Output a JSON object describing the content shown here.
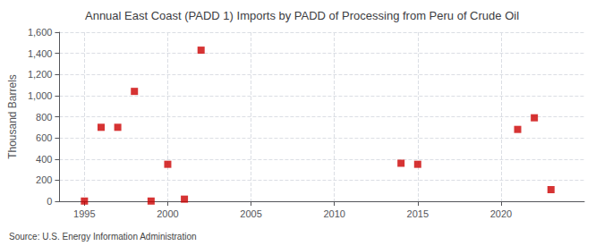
{
  "chart_data": {
    "type": "scatter",
    "title": "Annual East Coast (PADD 1) Imports by PADD of Processing from Peru of Crude Oil",
    "ylabel": "Thousand Barrels",
    "annotation": "Source: U.S. Energy Information Administration",
    "x": [
      1995,
      1996,
      1997,
      1998,
      1999,
      2000,
      2001,
      2002,
      2014,
      2015,
      2021,
      2022,
      2023
    ],
    "values": [
      2,
      700,
      700,
      1040,
      2,
      350,
      20,
      1430,
      360,
      350,
      680,
      790,
      110
    ],
    "color": "#cc0000",
    "marker": "square",
    "xlim": [
      1993.5,
      2025
    ],
    "xticks": [
      1995,
      2000,
      2005,
      2010,
      2015,
      2020
    ],
    "ylim": [
      0,
      1600
    ],
    "yticks": [
      0,
      200,
      400,
      600,
      800,
      {
        "value": 1000,
        "label": "1,000"
      },
      {
        "value": 1200,
        "label": "1,200"
      },
      {
        "value": 1400,
        "label": "1,400"
      },
      {
        "value": 1600,
        "label": "1,600"
      }
    ],
    "grid": true
  }
}
